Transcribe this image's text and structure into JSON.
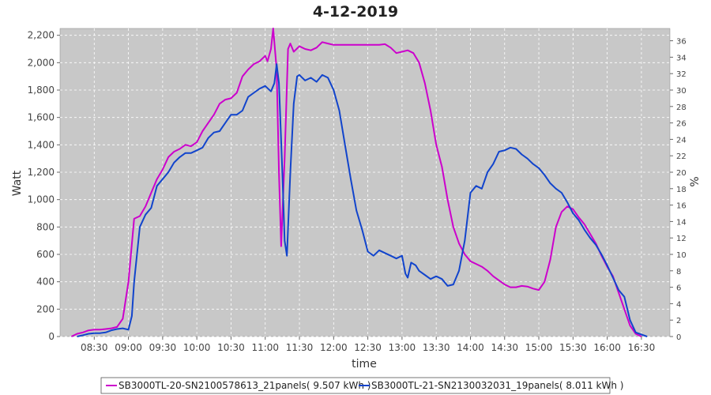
{
  "chart_data": {
    "type": "line",
    "title": "4-12-2019",
    "xlabel": "time",
    "ylabel": "Watt",
    "y2label": "%",
    "ylim": [
      0,
      2250
    ],
    "y2lim": [
      0,
      37.5
    ],
    "xlim": [
      "08:00",
      "16:55"
    ],
    "grid": true,
    "legend_position": "bottom",
    "x_ticks": [
      "08:30",
      "09:00",
      "09:30",
      "10:00",
      "10:30",
      "11:00",
      "11:30",
      "12:00",
      "12:30",
      "13:00",
      "13:30",
      "14:00",
      "14:30",
      "15:00",
      "15:30",
      "16:00",
      "16:30"
    ],
    "y_ticks": [
      "0",
      "200",
      "400",
      "600",
      "800",
      "1,000",
      "1,200",
      "1,400",
      "1,600",
      "1,800",
      "2,000",
      "2,200"
    ],
    "y2_ticks": [
      "0",
      "2",
      "4",
      "6",
      "8",
      "10",
      "12",
      "14",
      "16",
      "18",
      "20",
      "22",
      "24",
      "26",
      "28",
      "30",
      "32",
      "34",
      "36"
    ],
    "series": [
      {
        "name": "SB3000TL-20-SN2100578613_21panels( 9.507 kWh )",
        "color": "#cc00cc",
        "points": [
          [
            "08:10",
            0
          ],
          [
            "08:15",
            20
          ],
          [
            "08:20",
            30
          ],
          [
            "08:25",
            45
          ],
          [
            "08:30",
            50
          ],
          [
            "08:35",
            50
          ],
          [
            "08:40",
            55
          ],
          [
            "08:45",
            60
          ],
          [
            "08:50",
            70
          ],
          [
            "08:55",
            130
          ],
          [
            "09:00",
            400
          ],
          [
            "09:05",
            860
          ],
          [
            "09:10",
            880
          ],
          [
            "09:15",
            950
          ],
          [
            "09:20",
            1050
          ],
          [
            "09:25",
            1150
          ],
          [
            "09:30",
            1220
          ],
          [
            "09:35",
            1310
          ],
          [
            "09:40",
            1350
          ],
          [
            "09:45",
            1370
          ],
          [
            "09:50",
            1400
          ],
          [
            "09:55",
            1390
          ],
          [
            "10:00",
            1420
          ],
          [
            "10:05",
            1500
          ],
          [
            "10:10",
            1560
          ],
          [
            "10:15",
            1620
          ],
          [
            "10:20",
            1700
          ],
          [
            "10:25",
            1730
          ],
          [
            "10:30",
            1740
          ],
          [
            "10:35",
            1780
          ],
          [
            "10:40",
            1900
          ],
          [
            "10:45",
            1950
          ],
          [
            "10:50",
            1990
          ],
          [
            "10:55",
            2010
          ],
          [
            "11:00",
            2050
          ],
          [
            "11:02",
            2010
          ],
          [
            "11:05",
            2100
          ],
          [
            "11:07",
            2250
          ],
          [
            "11:10",
            1950
          ],
          [
            "11:12",
            1200
          ],
          [
            "11:14",
            660
          ],
          [
            "11:17",
            1300
          ],
          [
            "11:20",
            2100
          ],
          [
            "11:22",
            2140
          ],
          [
            "11:25",
            2080
          ],
          [
            "11:30",
            2120
          ],
          [
            "11:35",
            2100
          ],
          [
            "11:40",
            2090
          ],
          [
            "11:45",
            2110
          ],
          [
            "11:50",
            2150
          ],
          [
            "11:55",
            2140
          ],
          [
            "12:00",
            2130
          ],
          [
            "12:10",
            2130
          ],
          [
            "12:20",
            2130
          ],
          [
            "12:30",
            2130
          ],
          [
            "12:40",
            2130
          ],
          [
            "12:45",
            2135
          ],
          [
            "12:50",
            2110
          ],
          [
            "12:55",
            2070
          ],
          [
            "13:00",
            2080
          ],
          [
            "13:05",
            2090
          ],
          [
            "13:10",
            2070
          ],
          [
            "13:15",
            2000
          ],
          [
            "13:20",
            1850
          ],
          [
            "13:25",
            1650
          ],
          [
            "13:30",
            1400
          ],
          [
            "13:35",
            1240
          ],
          [
            "13:40",
            1000
          ],
          [
            "13:45",
            800
          ],
          [
            "13:50",
            680
          ],
          [
            "13:55",
            600
          ],
          [
            "14:00",
            550
          ],
          [
            "14:05",
            530
          ],
          [
            "14:10",
            510
          ],
          [
            "14:15",
            480
          ],
          [
            "14:20",
            440
          ],
          [
            "14:25",
            410
          ],
          [
            "14:30",
            380
          ],
          [
            "14:35",
            360
          ],
          [
            "14:40",
            360
          ],
          [
            "14:45",
            370
          ],
          [
            "14:50",
            365
          ],
          [
            "14:55",
            350
          ],
          [
            "15:00",
            340
          ],
          [
            "15:05",
            400
          ],
          [
            "15:10",
            560
          ],
          [
            "15:15",
            800
          ],
          [
            "15:20",
            910
          ],
          [
            "15:25",
            950
          ],
          [
            "15:30",
            930
          ],
          [
            "15:35",
            870
          ],
          [
            "15:40",
            820
          ],
          [
            "15:45",
            750
          ],
          [
            "15:50",
            680
          ],
          [
            "15:55",
            590
          ],
          [
            "16:00",
            510
          ],
          [
            "16:05",
            440
          ],
          [
            "16:10",
            320
          ],
          [
            "16:15",
            200
          ],
          [
            "16:20",
            80
          ],
          [
            "16:25",
            20
          ],
          [
            "16:30",
            0
          ]
        ]
      },
      {
        "name": "SB3000TL-21-SN2130032031_19panels( 8.011 kWh )",
        "color": "#1144cc",
        "points": [
          [
            "08:15",
            0
          ],
          [
            "08:20",
            10
          ],
          [
            "08:25",
            20
          ],
          [
            "08:30",
            25
          ],
          [
            "08:35",
            25
          ],
          [
            "08:40",
            30
          ],
          [
            "08:45",
            45
          ],
          [
            "08:50",
            55
          ],
          [
            "08:55",
            60
          ],
          [
            "09:00",
            50
          ],
          [
            "09:03",
            150
          ],
          [
            "09:05",
            400
          ],
          [
            "09:10",
            800
          ],
          [
            "09:15",
            890
          ],
          [
            "09:20",
            940
          ],
          [
            "09:25",
            1100
          ],
          [
            "09:30",
            1150
          ],
          [
            "09:35",
            1200
          ],
          [
            "09:40",
            1270
          ],
          [
            "09:45",
            1310
          ],
          [
            "09:50",
            1340
          ],
          [
            "09:55",
            1340
          ],
          [
            "10:00",
            1360
          ],
          [
            "10:05",
            1380
          ],
          [
            "10:10",
            1450
          ],
          [
            "10:15",
            1490
          ],
          [
            "10:20",
            1500
          ],
          [
            "10:25",
            1560
          ],
          [
            "10:30",
            1620
          ],
          [
            "10:35",
            1620
          ],
          [
            "10:40",
            1650
          ],
          [
            "10:45",
            1750
          ],
          [
            "10:50",
            1780
          ],
          [
            "10:55",
            1810
          ],
          [
            "11:00",
            1830
          ],
          [
            "11:05",
            1790
          ],
          [
            "11:08",
            1850
          ],
          [
            "11:10",
            1990
          ],
          [
            "11:12",
            1850
          ],
          [
            "11:15",
            1200
          ],
          [
            "11:17",
            700
          ],
          [
            "11:19",
            590
          ],
          [
            "11:22",
            1200
          ],
          [
            "11:25",
            1700
          ],
          [
            "11:28",
            1900
          ],
          [
            "11:30",
            1910
          ],
          [
            "11:35",
            1870
          ],
          [
            "11:40",
            1890
          ],
          [
            "11:45",
            1860
          ],
          [
            "11:50",
            1910
          ],
          [
            "11:55",
            1890
          ],
          [
            "12:00",
            1800
          ],
          [
            "12:05",
            1650
          ],
          [
            "12:10",
            1400
          ],
          [
            "12:15",
            1150
          ],
          [
            "12:20",
            920
          ],
          [
            "12:25",
            780
          ],
          [
            "12:30",
            620
          ],
          [
            "12:35",
            590
          ],
          [
            "12:40",
            630
          ],
          [
            "12:45",
            610
          ],
          [
            "12:50",
            590
          ],
          [
            "12:55",
            570
          ],
          [
            "13:00",
            590
          ],
          [
            "13:03",
            460
          ],
          [
            "13:05",
            430
          ],
          [
            "13:08",
            540
          ],
          [
            "13:12",
            520
          ],
          [
            "13:15",
            480
          ],
          [
            "13:20",
            450
          ],
          [
            "13:25",
            420
          ],
          [
            "13:30",
            440
          ],
          [
            "13:35",
            420
          ],
          [
            "13:40",
            370
          ],
          [
            "13:45",
            380
          ],
          [
            "13:50",
            480
          ],
          [
            "13:55",
            700
          ],
          [
            "14:00",
            1050
          ],
          [
            "14:05",
            1100
          ],
          [
            "14:10",
            1080
          ],
          [
            "14:15",
            1200
          ],
          [
            "14:20",
            1260
          ],
          [
            "14:25",
            1350
          ],
          [
            "14:30",
            1360
          ],
          [
            "14:35",
            1380
          ],
          [
            "14:40",
            1370
          ],
          [
            "14:45",
            1330
          ],
          [
            "14:50",
            1300
          ],
          [
            "14:55",
            1260
          ],
          [
            "15:00",
            1230
          ],
          [
            "15:05",
            1180
          ],
          [
            "15:10",
            1120
          ],
          [
            "15:15",
            1080
          ],
          [
            "15:20",
            1050
          ],
          [
            "15:25",
            980
          ],
          [
            "15:30",
            900
          ],
          [
            "15:35",
            850
          ],
          [
            "15:40",
            780
          ],
          [
            "15:45",
            720
          ],
          [
            "15:50",
            670
          ],
          [
            "15:55",
            600
          ],
          [
            "16:00",
            520
          ],
          [
            "16:05",
            430
          ],
          [
            "16:10",
            340
          ],
          [
            "16:15",
            290
          ],
          [
            "16:20",
            120
          ],
          [
            "16:25",
            30
          ],
          [
            "16:35",
            0
          ]
        ]
      }
    ]
  }
}
